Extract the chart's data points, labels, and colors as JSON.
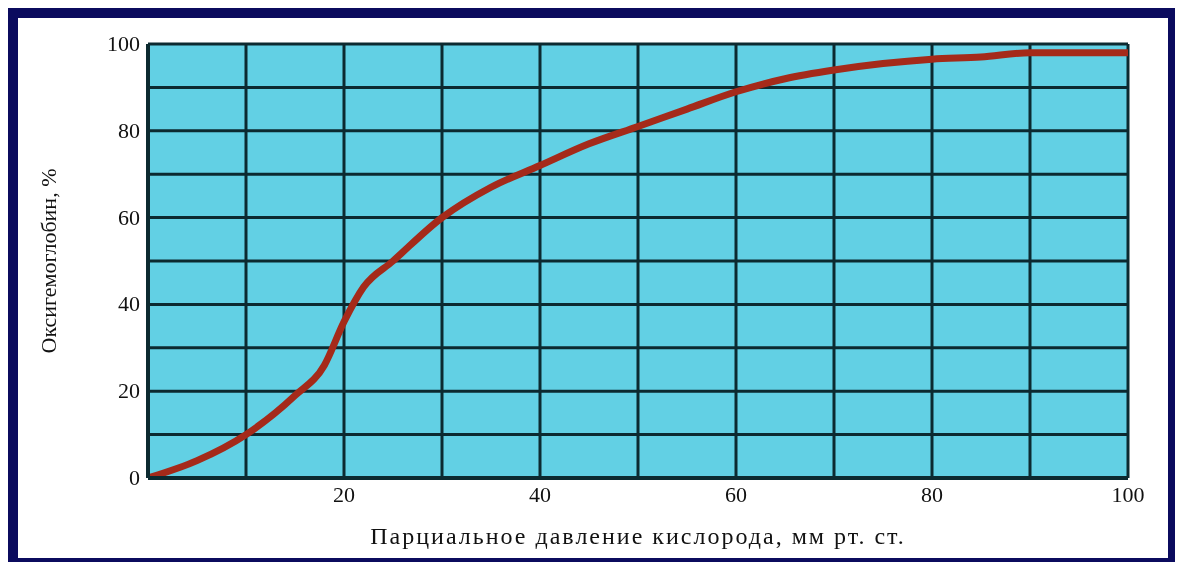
{
  "chart_data": {
    "type": "line",
    "xlabel": "Парциальное давление кислорода, мм  рт. ст.",
    "ylabel": "Оксигемоглобин, %",
    "series": [
      {
        "color": "#a52a1a",
        "x": [
          0,
          5,
          10,
          15,
          18,
          20,
          22,
          25,
          30,
          35,
          40,
          45,
          50,
          55,
          60,
          65,
          70,
          75,
          80,
          85,
          90,
          95,
          100
        ],
        "values": [
          0,
          4,
          10,
          19,
          26,
          36,
          44,
          50,
          60,
          67,
          72,
          77,
          81,
          85,
          89,
          92,
          94,
          95.5,
          96.5,
          97,
          98,
          98,
          98
        ]
      }
    ],
    "xlim": [
      0,
      100
    ],
    "ylim": [
      0,
      100
    ],
    "xticks": [
      {
        "value": 0,
        "label": null
      },
      {
        "value": 10,
        "label": null
      },
      20,
      {
        "value": 30,
        "label": null
      },
      40,
      {
        "value": 50,
        "label": null
      },
      60,
      {
        "value": 70,
        "label": null
      },
      80,
      {
        "value": 90,
        "label": null
      },
      100
    ],
    "yticks": [
      0,
      {
        "value": 10,
        "label": null
      },
      20,
      {
        "value": 30,
        "label": null
      },
      40,
      {
        "value": 50,
        "label": null
      },
      60,
      {
        "value": 70,
        "label": null
      },
      80,
      {
        "value": 90,
        "label": null
      },
      100
    ],
    "grid": true,
    "marker": "none",
    "line_style": "solid",
    "legend": false
  }
}
